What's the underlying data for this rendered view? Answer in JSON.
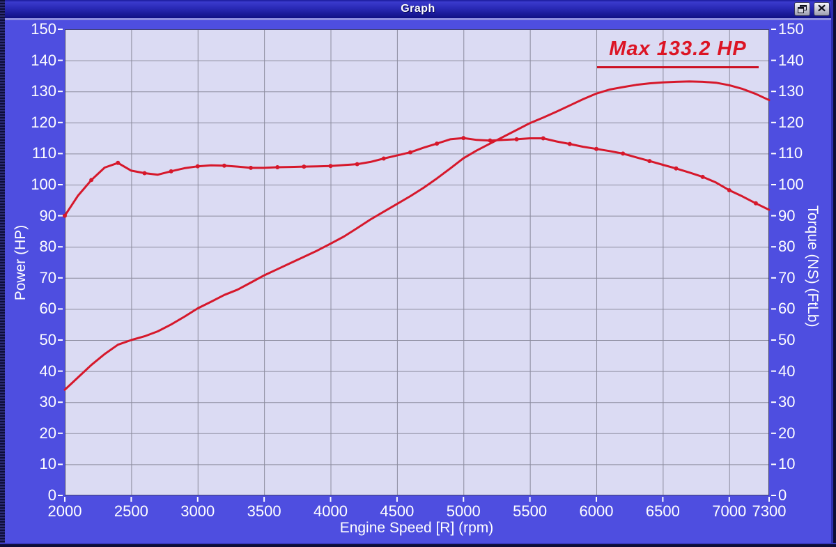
{
  "window": {
    "title": "Graph"
  },
  "colors": {
    "window_bg": "#4e4ee0",
    "plot_bg": "#dbdbf3",
    "grid": "#8c8c9e",
    "plot_border": "#40406e",
    "tick": "#ffffff",
    "label_text": "#ffffff",
    "curve_red": "#d6182b",
    "annotation_red": "#dc1424"
  },
  "chart_data": {
    "type": "line",
    "title": "",
    "xlabel": "Engine Speed [R] (rpm)",
    "ylabel_left": "Power (HP)",
    "ylabel_right": "Torque (NS) (FtLb)",
    "xlim": [
      2000,
      7300
    ],
    "ylim": [
      0,
      150
    ],
    "x_ticks": [
      2000,
      2500,
      3000,
      3500,
      4000,
      4500,
      5000,
      5500,
      6000,
      6500,
      7000,
      7300
    ],
    "y_ticks": [
      0,
      10,
      20,
      30,
      40,
      50,
      60,
      70,
      80,
      90,
      100,
      110,
      120,
      130,
      140,
      150
    ],
    "grid": true,
    "annotation": {
      "text": "Max 133.2 HP"
    },
    "x_rpm": [
      2000,
      2100,
      2200,
      2300,
      2400,
      2500,
      2600,
      2700,
      2800,
      2900,
      3000,
      3100,
      3200,
      3300,
      3400,
      3500,
      3600,
      3700,
      3800,
      3900,
      4000,
      4100,
      4200,
      4300,
      4400,
      4500,
      4600,
      4700,
      4800,
      4900,
      5000,
      5100,
      5200,
      5300,
      5400,
      5500,
      5600,
      5700,
      5800,
      5900,
      6000,
      6100,
      6200,
      6300,
      6400,
      6500,
      6600,
      6700,
      6800,
      6900,
      7000,
      7100,
      7200,
      7300
    ],
    "series": [
      {
        "name": "Power (HP)",
        "color": "#d6182b",
        "marker_every": 0,
        "values": [
          34,
          38,
          42,
          45.5,
          48.5,
          50,
          51.2,
          52.8,
          55,
          57.5,
          60.2,
          62.3,
          64.5,
          66.2,
          68.5,
          70.8,
          72.8,
          74.8,
          76.8,
          78.8,
          81,
          83.3,
          86,
          88.8,
          91.3,
          93.8,
          96.3,
          99,
          102,
          105.2,
          108.5,
          111,
          113.2,
          115.4,
          117.6,
          119.8,
          121.6,
          123.5,
          125.5,
          127.5,
          129.3,
          130.6,
          131.4,
          132.1,
          132.6,
          132.9,
          133.1,
          133.2,
          133.1,
          132.8,
          132,
          130.8,
          129.2,
          127.2
        ],
        "max_label": "Max 133.2 HP",
        "max_value": 133.2
      },
      {
        "name": "Torque (FtLb)",
        "color": "#d6182b",
        "marker_every": 2,
        "values": [
          90,
          96.5,
          101.5,
          105.5,
          107,
          104.5,
          103.7,
          103.2,
          104.3,
          105.3,
          105.9,
          106.2,
          106.1,
          105.8,
          105.4,
          105.4,
          105.6,
          105.7,
          105.8,
          105.9,
          106,
          106.3,
          106.6,
          107.3,
          108.4,
          109.4,
          110.4,
          111.9,
          113.2,
          114.6,
          115,
          114.4,
          114.2,
          114.4,
          114.6,
          114.9,
          114.9,
          113.9,
          113.1,
          112.2,
          111.5,
          110.8,
          110,
          108.8,
          107.6,
          106.4,
          105.2,
          103.9,
          102.5,
          100.7,
          98.2,
          96.2,
          94,
          91.9
        ]
      }
    ]
  }
}
